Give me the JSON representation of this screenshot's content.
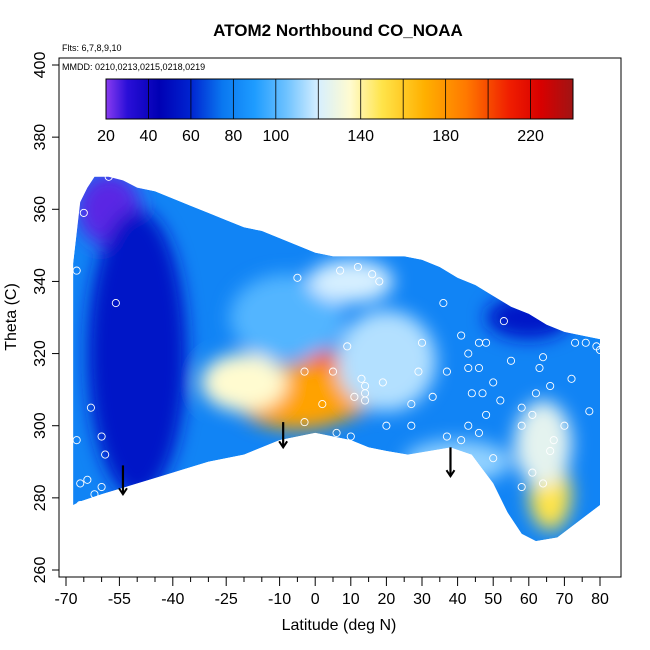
{
  "chart_data": {
    "type": "heatmap",
    "title": "ATOM2 Northbound CO_NOAA",
    "annotations": {
      "flights": "Flts: 6,7,8,9,10",
      "dates": "MMDD: 0210,0213,0215,0218,0219"
    },
    "xlabel": "Latitude (deg N)",
    "ylabel": "Theta (C)",
    "xlim": [
      -70,
      80
    ],
    "ylim": [
      260,
      400
    ],
    "xticks": [
      -70,
      -55,
      -40,
      -25,
      -10,
      0,
      10,
      20,
      30,
      40,
      50,
      60,
      70,
      80
    ],
    "xtick_labels": [
      "-70",
      "-55",
      "-40",
      "-25",
      "-10",
      "0",
      "10",
      "20",
      "30",
      "40",
      "50",
      "60",
      "70",
      "80"
    ],
    "yticks": [
      260,
      280,
      300,
      320,
      340,
      360,
      380,
      400
    ],
    "ytick_labels": [
      "260",
      "280",
      "300",
      "320",
      "340",
      "360",
      "380",
      "400"
    ],
    "colorbar": {
      "ticks": [
        20,
        40,
        60,
        80,
        100,
        140,
        180,
        220
      ],
      "tick_labels": [
        "20",
        "40",
        "60",
        "80",
        "100",
        "140",
        "180",
        "220"
      ],
      "range": [
        20,
        240
      ],
      "stops": [
        {
          "v": 20,
          "c": "#8a3cf0"
        },
        {
          "v": 30,
          "c": "#2a0fd8"
        },
        {
          "v": 45,
          "c": "#0000b4"
        },
        {
          "v": 60,
          "c": "#0024d0"
        },
        {
          "v": 75,
          "c": "#0a78f0"
        },
        {
          "v": 90,
          "c": "#1e9cff"
        },
        {
          "v": 105,
          "c": "#6ec2ff"
        },
        {
          "v": 120,
          "c": "#d6efff"
        },
        {
          "v": 135,
          "c": "#fffbd0"
        },
        {
          "v": 150,
          "c": "#ffe44a"
        },
        {
          "v": 170,
          "c": "#ffb000"
        },
        {
          "v": 190,
          "c": "#ff7800"
        },
        {
          "v": 210,
          "c": "#f01e00"
        },
        {
          "v": 225,
          "c": "#d80000"
        },
        {
          "v": 240,
          "c": "#a01414"
        }
      ]
    },
    "field_background_value": 80,
    "boundary_top": [
      [
        -68,
        345
      ],
      [
        -66,
        362
      ],
      [
        -64,
        366
      ],
      [
        -62,
        369
      ],
      [
        -58,
        369
      ],
      [
        -54,
        368
      ],
      [
        -50,
        366
      ],
      [
        -45,
        365
      ],
      [
        -40,
        363
      ],
      [
        -35,
        361
      ],
      [
        -30,
        359
      ],
      [
        -25,
        357
      ],
      [
        -20,
        355
      ],
      [
        -15,
        354
      ],
      [
        -10,
        352
      ],
      [
        -5,
        350
      ],
      [
        0,
        348
      ],
      [
        5,
        347
      ],
      [
        10,
        347
      ],
      [
        15,
        347
      ],
      [
        20,
        347
      ],
      [
        25,
        347
      ],
      [
        30,
        346
      ],
      [
        35,
        344
      ],
      [
        40,
        341
      ],
      [
        45,
        339
      ],
      [
        50,
        336
      ],
      [
        55,
        333
      ],
      [
        60,
        331
      ],
      [
        65,
        328
      ],
      [
        70,
        326
      ],
      [
        75,
        325
      ],
      [
        80,
        324
      ]
    ],
    "boundary_bottom": [
      [
        80,
        278
      ],
      [
        76,
        275
      ],
      [
        72,
        272
      ],
      [
        68,
        269
      ],
      [
        62,
        268
      ],
      [
        58,
        270
      ],
      [
        54,
        276
      ],
      [
        50,
        284
      ],
      [
        44,
        292
      ],
      [
        38,
        294
      ],
      [
        32,
        293
      ],
      [
        26,
        292
      ],
      [
        20,
        293
      ],
      [
        15,
        294
      ],
      [
        10,
        296
      ],
      [
        5,
        297
      ],
      [
        0,
        298
      ],
      [
        -5,
        297
      ],
      [
        -10,
        296
      ],
      [
        -20,
        292
      ],
      [
        -30,
        290
      ],
      [
        -40,
        287
      ],
      [
        -50,
        284
      ],
      [
        -60,
        281
      ],
      [
        -66,
        279
      ],
      [
        -68,
        278
      ]
    ],
    "anomalies": [
      {
        "x": 3,
        "y": 311,
        "value": 200,
        "rx": 9,
        "ry": 10
      },
      {
        "x": -5,
        "y": 308,
        "value": 175,
        "rx": 18,
        "ry": 9
      },
      {
        "x": 8,
        "y": 308,
        "value": 175,
        "rx": 8,
        "ry": 6
      },
      {
        "x": -20,
        "y": 312,
        "value": 135,
        "rx": 12,
        "ry": 8
      },
      {
        "x": 20,
        "y": 318,
        "value": 115,
        "rx": 14,
        "ry": 14
      },
      {
        "x": -8,
        "y": 330,
        "value": 100,
        "rx": 16,
        "ry": 12
      },
      {
        "x": 10,
        "y": 340,
        "value": 120,
        "rx": 12,
        "ry": 6
      },
      {
        "x": 66,
        "y": 281,
        "value": 150,
        "rx": 6,
        "ry": 10
      },
      {
        "x": 64,
        "y": 295,
        "value": 125,
        "rx": 8,
        "ry": 12
      },
      {
        "x": 40,
        "y": 290,
        "value": 110,
        "rx": 15,
        "ry": 6
      },
      {
        "x": -58,
        "y": 360,
        "value": 25,
        "rx": 9,
        "ry": 10
      },
      {
        "x": -50,
        "y": 320,
        "value": 55,
        "rx": 14,
        "ry": 40
      },
      {
        "x": 60,
        "y": 330,
        "value": 55,
        "rx": 12,
        "ry": 6
      }
    ],
    "observation_points": [
      [
        -67,
        296
      ],
      [
        -66,
        284
      ],
      [
        -64,
        285
      ],
      [
        -62,
        281
      ],
      [
        -60,
        297
      ],
      [
        -59,
        292
      ],
      [
        -63,
        305
      ],
      [
        -56,
        334
      ],
      [
        -60,
        283
      ],
      [
        -66,
        278
      ],
      [
        -67,
        343
      ],
      [
        -65,
        359
      ],
      [
        -58,
        369
      ],
      [
        -56,
        370
      ],
      [
        -5,
        341
      ],
      [
        -3,
        315
      ],
      [
        5,
        315
      ],
      [
        7,
        343
      ],
      [
        9,
        322
      ],
      [
        12,
        344
      ],
      [
        14,
        309
      ],
      [
        16,
        342
      ],
      [
        18,
        340
      ],
      [
        11,
        308
      ],
      [
        13,
        313
      ],
      [
        14,
        311
      ],
      [
        2,
        306
      ],
      [
        -3,
        301
      ],
      [
        6,
        298
      ],
      [
        10,
        297
      ],
      [
        14,
        307
      ],
      [
        19,
        312
      ],
      [
        20,
        300
      ],
      [
        27,
        306
      ],
      [
        27,
        300
      ],
      [
        29,
        315
      ],
      [
        33,
        308
      ],
      [
        30,
        323
      ],
      [
        33,
        290
      ],
      [
        36,
        334
      ],
      [
        37,
        315
      ],
      [
        41,
        325
      ],
      [
        43,
        316
      ],
      [
        43,
        320
      ],
      [
        46,
        316
      ],
      [
        46,
        323
      ],
      [
        48,
        323
      ],
      [
        46,
        298
      ],
      [
        50,
        312
      ],
      [
        52,
        307
      ],
      [
        53,
        329
      ],
      [
        55,
        318
      ],
      [
        58,
        305
      ],
      [
        58,
        300
      ],
      [
        61,
        303
      ],
      [
        63,
        316
      ],
      [
        64,
        319
      ],
      [
        62,
        309
      ],
      [
        66,
        311
      ],
      [
        67,
        296
      ],
      [
        66,
        293
      ],
      [
        70,
        300
      ],
      [
        72,
        313
      ],
      [
        73,
        323
      ],
      [
        76,
        323
      ],
      [
        77,
        304
      ],
      [
        79,
        322
      ],
      [
        80,
        321
      ],
      [
        37,
        297
      ],
      [
        41,
        296
      ],
      [
        43,
        300
      ],
      [
        44,
        309
      ],
      [
        48,
        303
      ],
      [
        45,
        283
      ],
      [
        50,
        291
      ],
      [
        61,
        287
      ],
      [
        64,
        284
      ],
      [
        58,
        283
      ],
      [
        47,
        309
      ]
    ],
    "markers": [
      {
        "x": -54,
        "y_from": 289,
        "y_to": 281
      },
      {
        "x": -9,
        "y_from": 301,
        "y_to": 294
      },
      {
        "x": 38,
        "y_from": 294,
        "y_to": 286
      }
    ]
  }
}
